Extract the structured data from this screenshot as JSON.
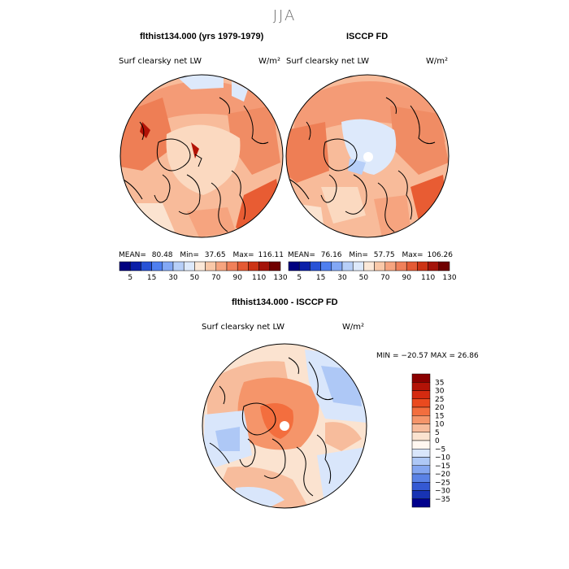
{
  "figure": {
    "season_title": "JJA",
    "panel_left": {
      "title": "flthist134.000 (yrs 1979-1979)",
      "variable": "Surf clearsky net LW",
      "units": "W/m²",
      "stats": {
        "mean_label": "MEAN=",
        "mean": "80.48",
        "min_label": "Min=",
        "min": "37.65",
        "max_label": "Max=",
        "max": "116.11"
      }
    },
    "panel_right": {
      "title": "ISCCP FD",
      "variable": "Surf clearsky net LW",
      "units": "W/m²",
      "stats": {
        "mean_label": "MEAN=",
        "mean": "76.16",
        "min_label": "Min=",
        "min": "57.75",
        "max_label": "Max=",
        "max": "106.26"
      }
    },
    "panel_diff": {
      "title": "flthist134.000 - ISCCP FD",
      "variable": "Surf clearsky net LW",
      "units": "W/m²",
      "minmax_text": "MIN = −20.57 MAX =  26.86"
    },
    "abs_colorbar": {
      "levels": [
        "5",
        "15",
        "30",
        "50",
        "70",
        "90",
        "110",
        "130"
      ],
      "colors": [
        "#00007f",
        "#0a1fa8",
        "#2752d6",
        "#4f7ff0",
        "#83a8f5",
        "#b7cff8",
        "#dde9fb",
        "#fbe8d8",
        "#f9c8a8",
        "#f6a47f",
        "#f0805a",
        "#e45a34",
        "#cc3415",
        "#a4140a",
        "#700000"
      ]
    },
    "diff_colorbar": {
      "levels": [
        "35",
        "30",
        "25",
        "20",
        "15",
        "10",
        "5",
        "0",
        "−5",
        "−10",
        "−15",
        "−20",
        "−25",
        "−30",
        "−35"
      ],
      "colors": [
        "#8b0000",
        "#b31307",
        "#d42a10",
        "#ea4a1f",
        "#f36e3e",
        "#f5956a",
        "#f7bc9c",
        "#fbe3d0",
        "#fff7f0",
        "#d9e6fb",
        "#aec8f6",
        "#84a6f0",
        "#5a82e6",
        "#3459d3",
        "#1733b4",
        "#00008c"
      ]
    }
  }
}
